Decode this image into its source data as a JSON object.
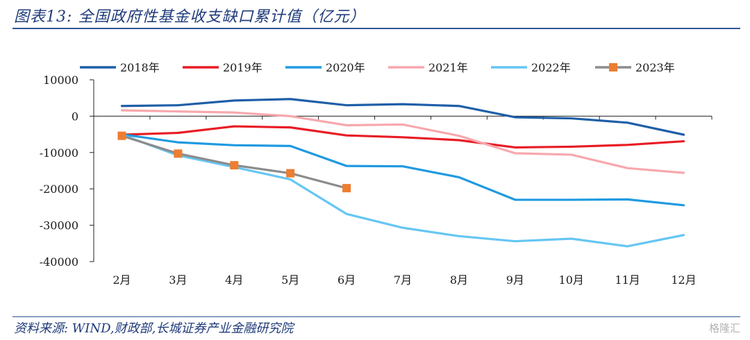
{
  "header": {
    "title": "图表13:  全国政府性基金收支缺口累计值（亿元）"
  },
  "footer": {
    "source": "资料来源:  WIND,财政部,长城证券产业金融研究院",
    "watermark": "格隆汇"
  },
  "chart_data": {
    "type": "line",
    "categories": [
      "2月",
      "3月",
      "4月",
      "5月",
      "6月",
      "7月",
      "8月",
      "9月",
      "10月",
      "11月",
      "12月"
    ],
    "ylim": [
      -40000,
      10000
    ],
    "yticks": [
      10000,
      0,
      -10000,
      -20000,
      -30000,
      -40000
    ],
    "legend_position": "top",
    "series": [
      {
        "name": "2018年",
        "color": "#1f5fa8",
        "values": [
          2800,
          3000,
          4300,
          4700,
          3000,
          3300,
          2800,
          -300,
          -600,
          -1800,
          -5100
        ]
      },
      {
        "name": "2019年",
        "color": "#e81c25",
        "values": [
          -5100,
          -4600,
          -2800,
          -3100,
          -5300,
          -5800,
          -6600,
          -8600,
          -8400,
          -7900,
          -6900
        ]
      },
      {
        "name": "2020年",
        "color": "#1f9ae0",
        "values": [
          -5000,
          -7200,
          -8000,
          -8200,
          -13700,
          -13800,
          -16800,
          -23000,
          -23000,
          -22900,
          -24500
        ]
      },
      {
        "name": "2021年",
        "color": "#f7a8ad",
        "values": [
          1600,
          1300,
          1000,
          0,
          -2500,
          -2300,
          -5400,
          -10200,
          -10600,
          -14300,
          -15600
        ]
      },
      {
        "name": "2022年",
        "color": "#66c6f3",
        "values": [
          -5100,
          -10800,
          -14000,
          -17400,
          -26900,
          -30700,
          -33000,
          -34400,
          -33700,
          -35800,
          -32700
        ]
      },
      {
        "name": "2023年",
        "color": "#8c8c8c",
        "marker": "square",
        "marker_color": "#ed7d31",
        "values": [
          -5400,
          -10300,
          -13500,
          -15700,
          -19800,
          null,
          null,
          null,
          null,
          null,
          null
        ]
      }
    ]
  }
}
